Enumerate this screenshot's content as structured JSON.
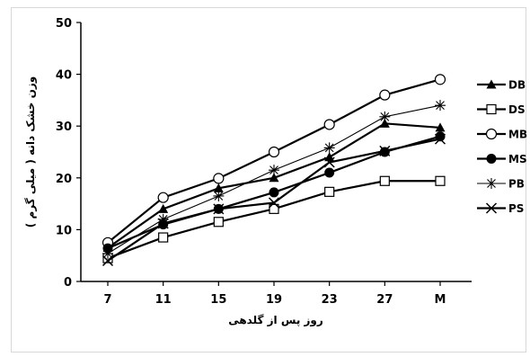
{
  "chart_data": {
    "type": "line",
    "categories": [
      "7",
      "11",
      "15",
      "19",
      "23",
      "27",
      "M"
    ],
    "xlabel": "روز پس از گلدهی",
    "ylabel": "وزن خشک دانه ( میلی گرم )",
    "ylim": [
      0,
      50
    ],
    "yticks": [
      "0",
      "10",
      "20",
      "30",
      "40",
      "50"
    ],
    "grid": false,
    "legend_position": "right",
    "series": [
      {
        "name": "DB",
        "marker": "triangle",
        "values": [
          6.5,
          14,
          18,
          20,
          24,
          30.5,
          29.7
        ]
      },
      {
        "name": "DS",
        "marker": "square",
        "values": [
          4.5,
          8.5,
          11.5,
          14,
          17.3,
          19.4,
          19.4
        ]
      },
      {
        "name": "MB",
        "marker": "circle-open",
        "values": [
          7.5,
          16.2,
          19.9,
          25,
          30.3,
          36,
          39
        ]
      },
      {
        "name": "MS",
        "marker": "circle-filled",
        "values": [
          6.4,
          11,
          14,
          17.2,
          21,
          25,
          28
        ]
      },
      {
        "name": "PB",
        "marker": "star",
        "values": [
          5.4,
          12,
          16.5,
          21.5,
          25.8,
          31.8,
          34
        ]
      },
      {
        "name": "PS",
        "marker": "x",
        "values": [
          4,
          11.2,
          14,
          15.2,
          23,
          25.2,
          27.5
        ]
      }
    ]
  }
}
